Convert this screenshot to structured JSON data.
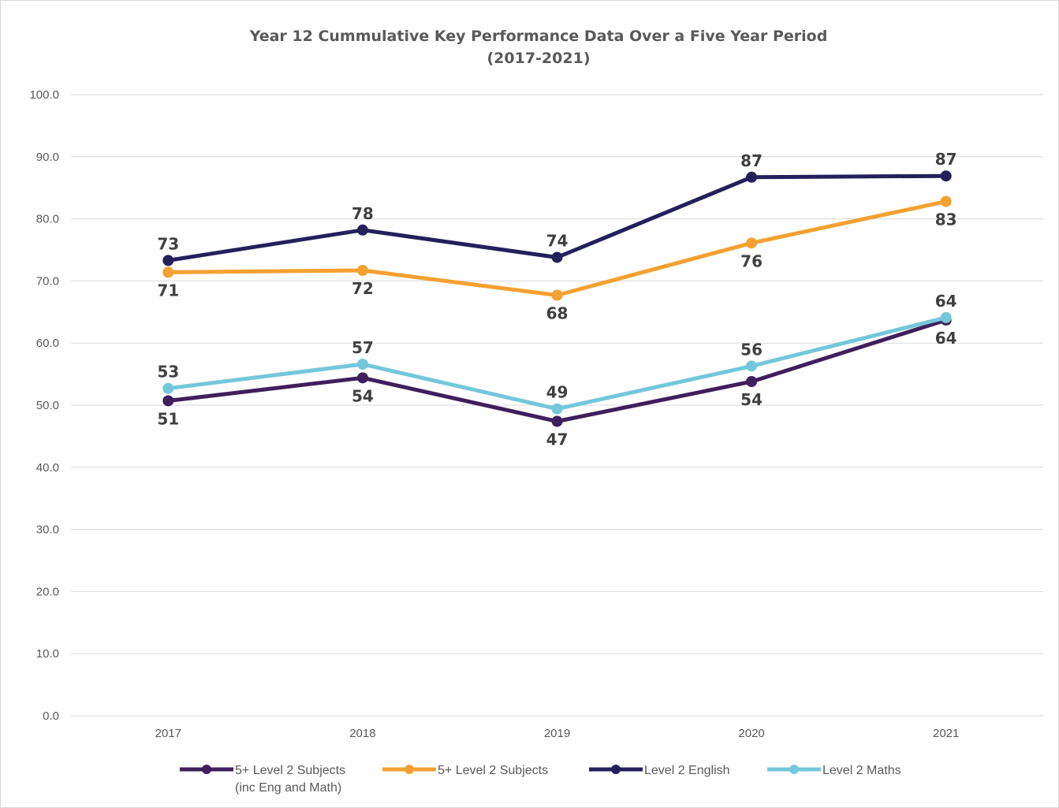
{
  "chart_data": {
    "type": "line",
    "title": "Year 12 Cummulative Key Performance Data Over a Five Year Period",
    "subtitle": "(2017-2021)",
    "xlabel": "",
    "ylabel": "",
    "categories": [
      "2017",
      "2018",
      "2019",
      "2020",
      "2021"
    ],
    "ylim": [
      0,
      100
    ],
    "yticks": [
      "0.0",
      "10.0",
      "20.0",
      "30.0",
      "40.0",
      "50.0",
      "60.0",
      "70.0",
      "80.0",
      "90.0",
      "100.0"
    ],
    "grid": true,
    "legend_position": "bottom",
    "series": [
      {
        "name": "5+ Level 2 Subjects (inc Eng and Math)",
        "legend_lines": [
          "5+ Level 2 Subjects",
          "(inc Eng and Math)"
        ],
        "color": "#3f1f5c",
        "values": [
          50.7,
          54.4,
          47.4,
          53.8,
          63.7
        ],
        "labels": [
          "51",
          "54",
          "47",
          "54",
          "64"
        ],
        "label_pos": [
          "below",
          "below",
          "below",
          "below",
          "below"
        ]
      },
      {
        "name": "5+ Level 2 Subjects",
        "legend_lines": [
          "5+ Level 2 Subjects"
        ],
        "color": "#f4a131",
        "values": [
          71.4,
          71.7,
          67.7,
          76.1,
          82.8
        ],
        "labels": [
          "71",
          "72",
          "68",
          "76",
          "83"
        ],
        "label_pos": [
          "below",
          "below",
          "below",
          "below",
          "below"
        ]
      },
      {
        "name": "Level 2 English",
        "legend_lines": [
          "Level 2 English"
        ],
        "color": "#23205c",
        "values": [
          73.3,
          78.2,
          73.8,
          86.7,
          86.9
        ],
        "labels": [
          "73",
          "78",
          "74",
          "87",
          "87"
        ],
        "label_pos": [
          "above",
          "above",
          "above",
          "above",
          "above"
        ]
      },
      {
        "name": "Level 2 Maths",
        "legend_lines": [
          "Level 2 Maths"
        ],
        "color": "#74c7da",
        "values": [
          52.7,
          56.6,
          49.4,
          56.3,
          64.1
        ],
        "labels": [
          "53",
          "57",
          "49",
          "56",
          "64"
        ],
        "label_pos": [
          "above",
          "above",
          "above",
          "above",
          "above"
        ]
      }
    ]
  }
}
